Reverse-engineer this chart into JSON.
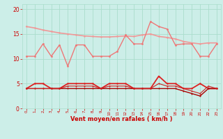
{
  "background_color": "#cceee8",
  "grid_color": "#aaddcc",
  "xlabel": "Vent moyen/en rafales ( km/h )",
  "xlabel_color": "#cc0000",
  "tick_color": "#cc0000",
  "ylim": [
    0,
    21
  ],
  "xlim": [
    -0.5,
    23.5
  ],
  "yticks": [
    0,
    5,
    10,
    15,
    20
  ],
  "xticks": [
    0,
    1,
    2,
    3,
    4,
    5,
    6,
    7,
    8,
    9,
    10,
    11,
    12,
    13,
    14,
    15,
    16,
    17,
    18,
    19,
    20,
    21,
    22,
    23
  ],
  "hours": [
    0,
    1,
    2,
    3,
    4,
    5,
    6,
    7,
    8,
    9,
    10,
    11,
    12,
    13,
    14,
    15,
    16,
    17,
    18,
    19,
    20,
    21,
    22,
    23
  ],
  "line1": {
    "values": [
      16.5,
      16.2,
      15.8,
      15.5,
      15.2,
      15.0,
      14.8,
      14.6,
      14.5,
      14.4,
      14.4,
      14.5,
      14.6,
      14.5,
      14.8,
      15.0,
      14.5,
      14.3,
      14.0,
      13.5,
      13.2,
      13.0,
      13.2,
      13.2
    ],
    "color": "#f09898",
    "linewidth": 1.2,
    "marker": "o",
    "markersize": 1.8
  },
  "line2": {
    "values": [
      10.5,
      10.5,
      13.0,
      10.5,
      12.8,
      8.5,
      12.8,
      12.8,
      10.5,
      10.5,
      10.5,
      11.5,
      14.8,
      13.0,
      13.0,
      17.5,
      16.5,
      16.0,
      12.8,
      13.0,
      13.0,
      10.5,
      10.5,
      13.0
    ],
    "color": "#ee7777",
    "linewidth": 1.0,
    "marker": "o",
    "markersize": 2.0
  },
  "line3": {
    "values": [
      4.0,
      5.0,
      5.0,
      4.0,
      4.0,
      5.0,
      5.0,
      5.0,
      5.0,
      4.0,
      5.0,
      5.0,
      5.0,
      4.0,
      4.0,
      4.0,
      6.5,
      5.0,
      5.0,
      4.0,
      4.0,
      5.0,
      4.0,
      4.0
    ],
    "color": "#dd2222",
    "linewidth": 1.3,
    "marker": "o",
    "markersize": 1.8
  },
  "line4": {
    "values": [
      4.0,
      4.0,
      4.0,
      4.0,
      4.0,
      4.0,
      4.0,
      4.0,
      4.0,
      4.0,
      4.0,
      4.0,
      4.0,
      4.0,
      4.0,
      4.0,
      4.0,
      4.0,
      4.0,
      3.5,
      3.0,
      2.5,
      4.0,
      4.0
    ],
    "color": "#aa0000",
    "linewidth": 1.0,
    "marker": "o",
    "markersize": 1.5
  },
  "line5": {
    "values": [
      4.0,
      4.0,
      4.0,
      4.0,
      4.0,
      4.5,
      4.5,
      4.5,
      4.5,
      4.0,
      4.5,
      4.5,
      4.5,
      4.0,
      4.0,
      4.0,
      5.0,
      4.5,
      4.5,
      4.0,
      3.5,
      3.0,
      4.5,
      4.0
    ],
    "color": "#cc2222",
    "linewidth": 0.8,
    "marker": "o",
    "markersize": 1.5
  }
}
